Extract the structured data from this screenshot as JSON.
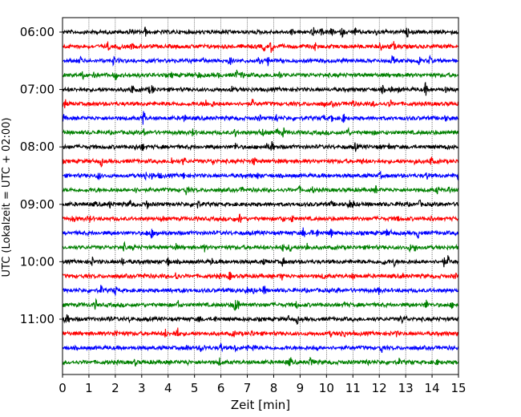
{
  "chart_data": {
    "type": "line",
    "title": "",
    "xlabel": "Zeit  [min]",
    "ylabel": "UTC (Lokalzeit = UTC + 02:00)",
    "xlim": [
      0,
      15
    ],
    "xticks": [
      "0",
      "1",
      "2",
      "3",
      "4",
      "5",
      "6",
      "7",
      "8",
      "9",
      "10",
      "11",
      "12",
      "13",
      "14",
      "15"
    ],
    "yticks": [
      "06:00",
      "07:00",
      "08:00",
      "09:00",
      "10:00",
      "11:00"
    ],
    "grid": "vertical dotted lines at each minute",
    "trace_colors": [
      "#000000",
      "#ff0000",
      "#0000ff",
      "#008000"
    ],
    "traces_per_hour": 4,
    "trace_interval_min": 15,
    "traces": [
      {
        "start": "06:00",
        "color": "#000000"
      },
      {
        "start": "06:15",
        "color": "#ff0000"
      },
      {
        "start": "06:30",
        "color": "#0000ff"
      },
      {
        "start": "06:45",
        "color": "#008000"
      },
      {
        "start": "07:00",
        "color": "#000000"
      },
      {
        "start": "07:15",
        "color": "#ff0000"
      },
      {
        "start": "07:30",
        "color": "#0000ff"
      },
      {
        "start": "07:45",
        "color": "#008000"
      },
      {
        "start": "08:00",
        "color": "#000000"
      },
      {
        "start": "08:15",
        "color": "#ff0000"
      },
      {
        "start": "08:30",
        "color": "#0000ff"
      },
      {
        "start": "08:45",
        "color": "#008000"
      },
      {
        "start": "09:00",
        "color": "#000000"
      },
      {
        "start": "09:15",
        "color": "#ff0000"
      },
      {
        "start": "09:30",
        "color": "#0000ff"
      },
      {
        "start": "09:45",
        "color": "#008000"
      },
      {
        "start": "10:00",
        "color": "#000000"
      },
      {
        "start": "10:15",
        "color": "#ff0000"
      },
      {
        "start": "10:30",
        "color": "#0000ff"
      },
      {
        "start": "10:45",
        "color": "#008000"
      },
      {
        "start": "11:00",
        "color": "#000000"
      },
      {
        "start": "11:15",
        "color": "#ff0000"
      },
      {
        "start": "11:30",
        "color": "#0000ff"
      },
      {
        "start": "11:45",
        "color": "#008000"
      }
    ]
  }
}
